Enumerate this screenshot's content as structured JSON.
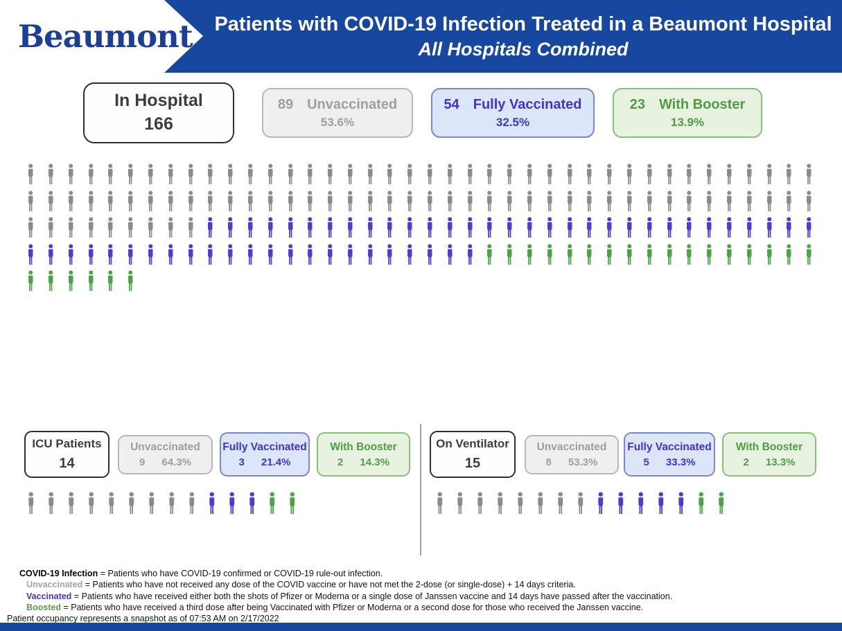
{
  "header": {
    "logo_text": "Beaumont",
    "title_line1": "Patients with COVID-19 Infection Treated in a Beaumont Hospital",
    "title_line2": "All Hospitals Combined"
  },
  "colors": {
    "banner_blue": "#17479f",
    "logo_blue": "#1d3e96",
    "series_colors": [
      "#8b8b8b",
      "#4a3ed2",
      "#4aa347"
    ],
    "unvaccinated_text": "#9e9e9e",
    "vaccinated_text": "#4233cb",
    "boosted_text": "#4f9c43"
  },
  "hospital": {
    "total_label": "In Hospital",
    "total_value": "166",
    "cards": [
      {
        "count": "89",
        "label": "Unvaccinated",
        "percent": "53.6%"
      },
      {
        "count": "54",
        "label": "Fully Vaccinated",
        "percent": "32.5%"
      },
      {
        "count": "23",
        "label": "With Booster",
        "percent": "13.9%"
      }
    ]
  },
  "icu": {
    "total_label": "ICU Patients",
    "total_value": "14",
    "cards": [
      {
        "label": "Unvaccinated",
        "count": "9",
        "percent": "64.3%"
      },
      {
        "label": "Fully Vaccinated",
        "count": "3",
        "percent": "21.4%"
      },
      {
        "label": "With Booster",
        "count": "2",
        "percent": "14.3%"
      }
    ]
  },
  "ventilator": {
    "total_label": "On Ventilator",
    "total_value": "15",
    "cards": [
      {
        "label": "Unvaccinated",
        "count": "8",
        "percent": "53.3%"
      },
      {
        "label": "Fully Vaccinated",
        "count": "5",
        "percent": "33.3%"
      },
      {
        "label": "With Booster",
        "count": "2",
        "percent": "13.3%"
      }
    ]
  },
  "footnotes": {
    "line1_term": "COVID-19 Infection",
    "line1_text": " = Patients who have COVID-19 confirmed or COVID-19 rule-out infection.",
    "line2_term": "Unvaccinated",
    "line2_text": " = Patients who have not received any dose of the COVID vaccine or have not met the 2-dose (or single-dose) + 14 days criteria.",
    "line3_term": "Vaccinated",
    "line3_text": " = Patients who have received either both the shots of Pfizer or Moderna or a single dose of Janssen vaccine and 14 days have passed after the vaccination.",
    "line4_term": "Boosted",
    "line4_text": " = Patients who have received a third dose after being Vaccinated with Pfizer or Moderna or a second dose for those who received the Janssen vaccine.",
    "snapshot": "Patient occupancy represents a snapshot as of 07:53 AM on 2/17/2022"
  },
  "chart_data": [
    {
      "type": "pictograph",
      "title": "In Hospital",
      "total": 166,
      "categories": [
        "Unvaccinated",
        "Fully Vaccinated",
        "With Booster"
      ],
      "values": [
        89,
        54,
        23
      ],
      "percents": [
        53.6,
        32.5,
        13.9
      ],
      "icon": "person",
      "columns_per_row": 40,
      "legend_position": "top-cards"
    },
    {
      "type": "pictograph",
      "title": "ICU Patients",
      "total": 14,
      "categories": [
        "Unvaccinated",
        "Fully Vaccinated",
        "With Booster"
      ],
      "values": [
        9,
        3,
        2
      ],
      "percents": [
        64.3,
        21.4,
        14.3
      ],
      "icon": "person",
      "columns_per_row": 20,
      "legend_position": "top-cards"
    },
    {
      "type": "pictograph",
      "title": "On Ventilator",
      "total": 15,
      "categories": [
        "Unvaccinated",
        "Fully Vaccinated",
        "With Booster"
      ],
      "values": [
        8,
        5,
        2
      ],
      "percents": [
        53.3,
        33.3,
        13.3
      ],
      "icon": "person",
      "columns_per_row": 20,
      "legend_position": "top-cards"
    }
  ]
}
